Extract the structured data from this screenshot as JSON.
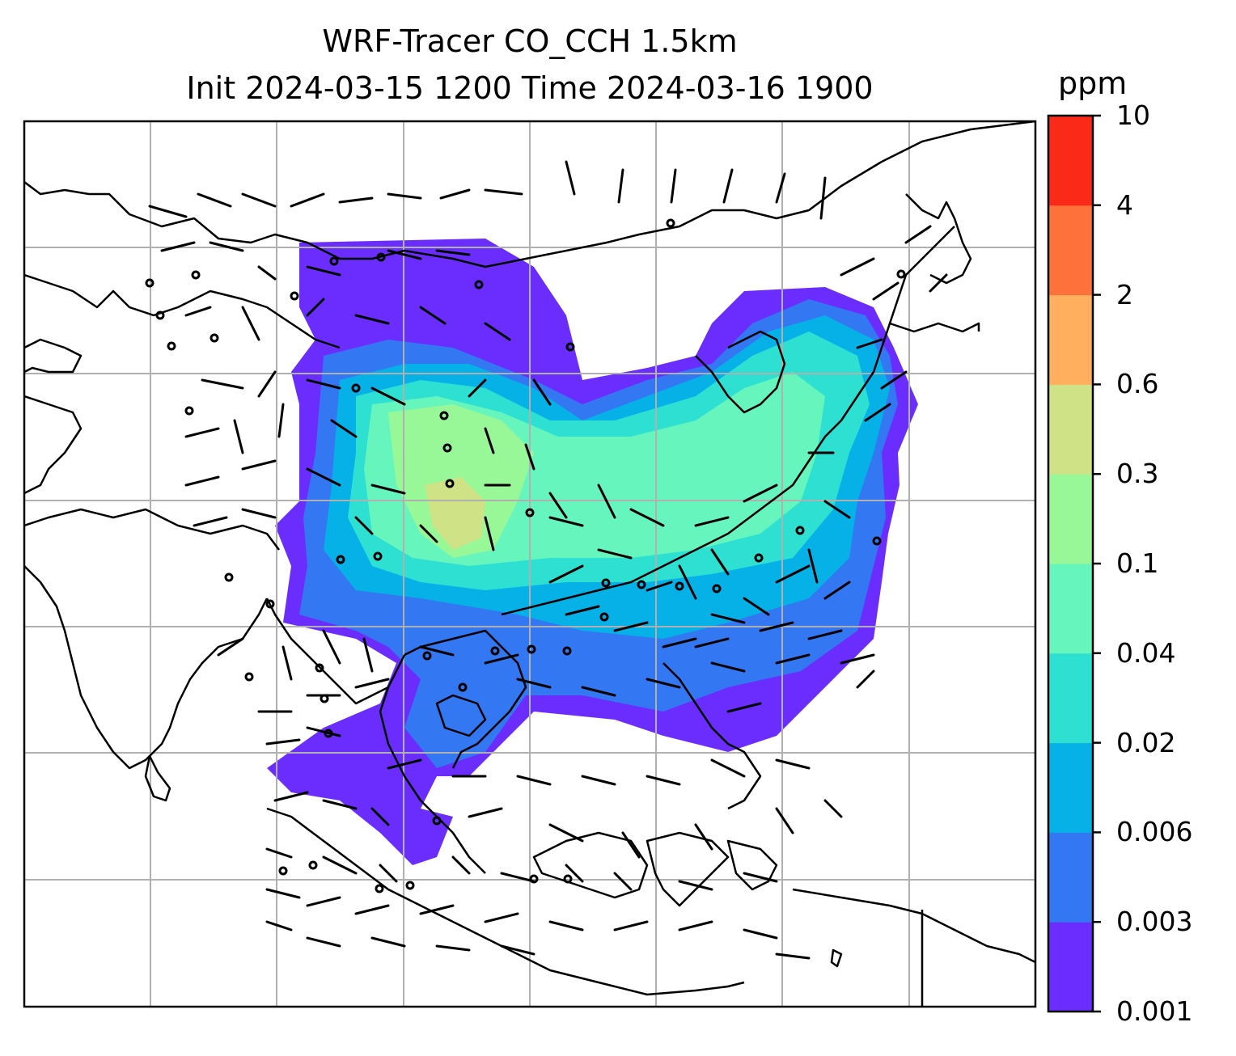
{
  "title": {
    "line1": "WRF-Tracer CO_CCH 1.5km",
    "line2": "Init 2024-03-15 1200 Time 2024-03-16 1900"
  },
  "colorbar": {
    "unit": "ppm",
    "ticks": [
      "0.001",
      "0.003",
      "0.006",
      "0.02",
      "0.04",
      "0.1",
      "0.3",
      "0.6",
      "2",
      "4",
      "10"
    ],
    "colors": [
      "#6a2dfd",
      "#3377f3",
      "#06b1e8",
      "#2de0d2",
      "#66f6bd",
      "#98f898",
      "#cfe286",
      "#ffaf5e",
      "#ff713b",
      "#fb2a18"
    ]
  },
  "map": {
    "gridline_color": "#b0b0b0",
    "coastline_color": "#000000",
    "barb_color": "#000000"
  }
}
